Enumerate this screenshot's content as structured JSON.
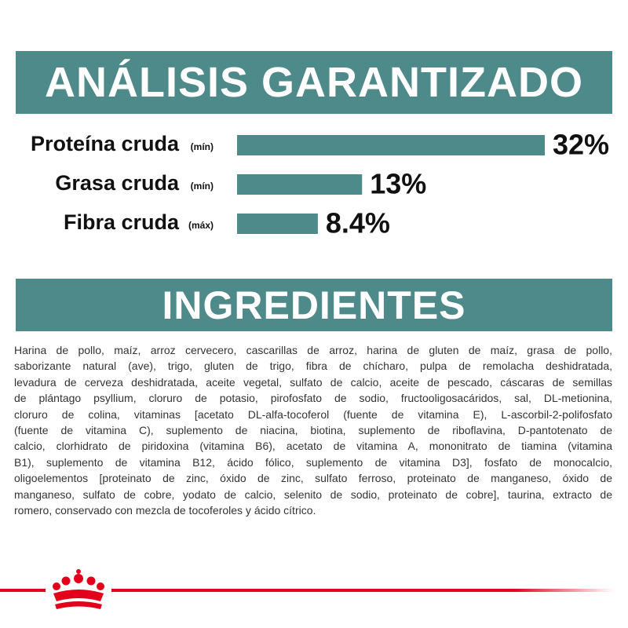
{
  "header": {
    "title": "ANÁLISIS GARANTIZADO"
  },
  "chart_data": {
    "type": "bar",
    "orientation": "horizontal",
    "color": "#4f8a8b",
    "categories": [
      "Proteína cruda",
      "Grasa cruda",
      "Fibra cruda"
    ],
    "qualifiers": [
      "(mín)",
      "(mín)",
      "(máx)"
    ],
    "values": [
      32,
      13,
      8.4
    ],
    "value_labels": [
      "32%",
      "13%",
      "8.4%"
    ]
  },
  "ingredients": {
    "title": "INGREDIENTES",
    "lines": [
      "Harina de pollo, maíz, arroz cervecero, cascarillas de arroz, harina de gluten de maíz, grasa de pollo,",
      "saborizante natural (ave), trigo, gluten de trigo, fibra de chícharo, pulpa de remolacha deshidratada,",
      "levadura de cerveza deshidratada, aceite vegetal, sulfato de calcio, aceite de pescado, cáscaras de semillas",
      "de plántago psyllium, cloruro de potasio, pirofosfato de sodio, fructooligosacáridos, sal, DL-metionina,",
      "cloruro de colina, vitaminas [acetato DL-alfa-tocoferol (fuente de vitamina E), L-ascorbil-2-polifosfato",
      "(fuente de vitamina C), suplemento de niacina, biotina, suplemento de riboflavina, D-pantotenato de",
      "calcio, clorhidrato de piridoxina (vitamina B6), acetato de vitamina A, mononitrato de tiamina (vitamina",
      "B1), suplemento de vitamina B12, ácido fólico, suplemento de vitamina D3], fosfato de monocalcio,",
      "oligoelementos [proteinato de zinc, óxido de zinc, sulfato ferroso, proteinato de manganeso, óxido de",
      "manganeso, sulfato de cobre, yodato de calcio, selenito de sodio, proteinato de cobre], taurina, extracto de",
      "romero, conservado con mezcla de tocoferoles y ácido cítrico."
    ]
  }
}
